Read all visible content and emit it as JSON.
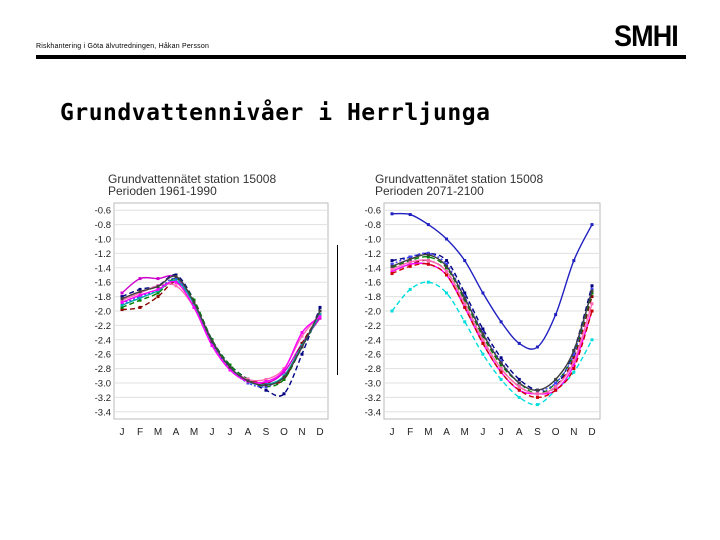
{
  "header": {
    "subtitle": "Riskhantering i Göta älvutredningen, Håkan Persson",
    "logo": "SMHI"
  },
  "slide": {
    "title": "Grundvattennivåer i Herrljunga"
  },
  "chart_data": [
    {
      "type": "line",
      "title": "Grundvattennätet station 15008",
      "subtitle": "Perioden 1961-1990",
      "categories": [
        "J",
        "F",
        "M",
        "A",
        "M",
        "J",
        "J",
        "A",
        "S",
        "O",
        "N",
        "D"
      ],
      "yticks": [
        "-0.6",
        "-0.8",
        "-1.0",
        "-1.2",
        "-1.4",
        "-1.6",
        "-1.8",
        "-2.0",
        "-2.2",
        "-2.4",
        "-2.6",
        "-2.8",
        "-3.0",
        "-3.2",
        "-3.4"
      ],
      "ylim": [
        -3.5,
        -0.5
      ],
      "grid": true,
      "series": [
        {
          "color": "#cc00cc",
          "style": "solid",
          "values": [
            -1.75,
            -1.55,
            -1.55,
            -1.53,
            -1.9,
            -2.4,
            -2.8,
            -2.95,
            -3.0,
            -2.85,
            -2.45,
            -2.1
          ]
        },
        {
          "color": "#000080",
          "style": "dash",
          "values": [
            -1.8,
            -1.7,
            -1.65,
            -1.5,
            -1.85,
            -2.4,
            -2.75,
            -2.95,
            -3.1,
            -3.15,
            -2.6,
            -1.95
          ]
        },
        {
          "color": "#8b0000",
          "style": "dash",
          "values": [
            -1.98,
            -1.95,
            -1.8,
            -1.6,
            -1.9,
            -2.45,
            -2.8,
            -2.95,
            -3.0,
            -2.95,
            -2.45,
            -2.05
          ]
        },
        {
          "color": "#008000",
          "style": "dash",
          "values": [
            -1.95,
            -1.85,
            -1.75,
            -1.55,
            -1.85,
            -2.4,
            -2.75,
            -2.95,
            -3.05,
            -2.95,
            -2.5,
            -2.05
          ]
        },
        {
          "color": "#ff69b4",
          "style": "solid",
          "values": [
            -1.85,
            -1.75,
            -1.65,
            -1.65,
            -1.95,
            -2.45,
            -2.8,
            -2.95,
            -2.95,
            -2.8,
            -2.35,
            -2.05
          ]
        },
        {
          "color": "#4040ff",
          "style": "dot",
          "values": [
            -1.9,
            -1.8,
            -1.7,
            -1.55,
            -1.9,
            -2.45,
            -2.8,
            -3.0,
            -3.05,
            -2.9,
            -2.5,
            -2.0
          ]
        },
        {
          "color": "#00aaaa",
          "style": "solid",
          "values": [
            -1.92,
            -1.82,
            -1.72,
            -1.58,
            -1.9,
            -2.42,
            -2.78,
            -2.98,
            -3.02,
            -2.9,
            -2.48,
            -2.05
          ]
        },
        {
          "color": "#ff00ff",
          "style": "solid",
          "values": [
            -1.88,
            -1.78,
            -1.7,
            -1.6,
            -1.95,
            -2.48,
            -2.82,
            -2.98,
            -2.98,
            -2.82,
            -2.3,
            -2.08
          ]
        },
        {
          "color": "#404040",
          "style": "solid",
          "values": [
            -1.83,
            -1.73,
            -1.66,
            -1.52,
            -1.88,
            -2.42,
            -2.78,
            -2.97,
            -3.03,
            -2.92,
            -2.5,
            -2.0
          ]
        }
      ]
    },
    {
      "type": "line",
      "title": "Grundvattennätet station 15008",
      "subtitle": "Perioden 2071-2100",
      "categories": [
        "J",
        "F",
        "M",
        "A",
        "M",
        "J",
        "J",
        "A",
        "S",
        "O",
        "N",
        "D"
      ],
      "yticks": [
        "-0.6",
        "-0.8",
        "-1.0",
        "-1.2",
        "-1.4",
        "-1.6",
        "-1.8",
        "-2.0",
        "-2.2",
        "-2.4",
        "-2.6",
        "-2.8",
        "-3.0",
        "-3.2",
        "-3.4"
      ],
      "ylim": [
        -3.5,
        -0.5
      ],
      "grid": true,
      "series": [
        {
          "color": "#2020c0",
          "style": "solid",
          "values": [
            -0.65,
            -0.66,
            -0.8,
            -1.0,
            -1.3,
            -1.75,
            -2.15,
            -2.45,
            -2.5,
            -2.05,
            -1.3,
            -0.8
          ]
        },
        {
          "color": "#00dddd",
          "style": "dash",
          "values": [
            -2.0,
            -1.7,
            -1.6,
            -1.75,
            -2.15,
            -2.6,
            -2.95,
            -3.2,
            -3.3,
            -3.1,
            -2.85,
            -2.4
          ]
        },
        {
          "color": "#000080",
          "style": "dash",
          "values": [
            -1.3,
            -1.25,
            -1.2,
            -1.3,
            -1.75,
            -2.25,
            -2.65,
            -2.95,
            -3.1,
            -3.05,
            -2.55,
            -1.65
          ]
        },
        {
          "color": "#8b0000",
          "style": "dash",
          "values": [
            -1.45,
            -1.35,
            -1.3,
            -1.45,
            -1.9,
            -2.4,
            -2.8,
            -3.05,
            -3.15,
            -3.05,
            -2.65,
            -1.8
          ]
        },
        {
          "color": "#008000",
          "style": "dash",
          "values": [
            -1.4,
            -1.3,
            -1.25,
            -1.4,
            -1.85,
            -2.35,
            -2.75,
            -3.0,
            -3.15,
            -3.0,
            -2.6,
            -1.75
          ]
        },
        {
          "color": "#ff00ff",
          "style": "solid",
          "values": [
            -1.45,
            -1.35,
            -1.35,
            -1.5,
            -1.95,
            -2.45,
            -2.85,
            -3.1,
            -3.15,
            -3.1,
            -2.75,
            -2.0
          ]
        },
        {
          "color": "#ff69b4",
          "style": "solid",
          "values": [
            -1.42,
            -1.32,
            -1.3,
            -1.45,
            -1.9,
            -2.4,
            -2.8,
            -3.05,
            -3.15,
            -3.05,
            -2.7,
            -1.9
          ]
        },
        {
          "color": "#4040ff",
          "style": "dot",
          "values": [
            -1.35,
            -1.25,
            -1.2,
            -1.35,
            -1.8,
            -2.3,
            -2.7,
            -3.0,
            -3.1,
            -3.0,
            -2.6,
            -1.7
          ]
        },
        {
          "color": "#404040",
          "style": "solid",
          "values": [
            -1.38,
            -1.28,
            -1.22,
            -1.38,
            -1.82,
            -2.32,
            -2.72,
            -3.0,
            -3.1,
            -2.95,
            -2.55,
            -1.72
          ]
        },
        {
          "color": "#cc0000",
          "style": "dash",
          "values": [
            -1.48,
            -1.38,
            -1.35,
            -1.5,
            -1.95,
            -2.45,
            -2.85,
            -3.1,
            -3.2,
            -3.1,
            -2.8,
            -2.0
          ]
        }
      ]
    }
  ]
}
